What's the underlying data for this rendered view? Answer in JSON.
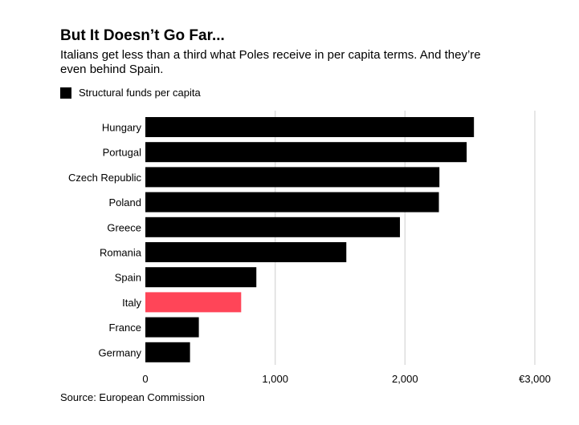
{
  "title": "But It Doesn’t Go Far...",
  "subtitle": "Italians get less than a third what Poles receive in per capita terms. And they’re even behind Spain.",
  "legend_label": "Structural funds per capita",
  "source": "Source: European Commission",
  "chart_data": {
    "type": "bar",
    "orientation": "horizontal",
    "categories": [
      "Hungary",
      "Portugal",
      "Czech Republic",
      "Poland",
      "Greece",
      "Romania",
      "Spain",
      "Italy",
      "France",
      "Germany"
    ],
    "series": [
      {
        "name": "Structural funds per capita",
        "values": [
          2531,
          2475,
          2265,
          2261,
          1961,
          1548,
          855,
          738,
          412,
          344
        ]
      }
    ],
    "highlight": "Italy",
    "colors": {
      "default": "#000000",
      "highlight": "#ff4558",
      "grid": "#dddddd"
    },
    "xlim": [
      0,
      3000
    ],
    "xticks": [
      0,
      1000,
      2000,
      3000
    ],
    "xtick_labels": [
      "0",
      "1,000",
      "2,000",
      "€3,000"
    ],
    "grid": true,
    "legend_position": "top-left"
  }
}
